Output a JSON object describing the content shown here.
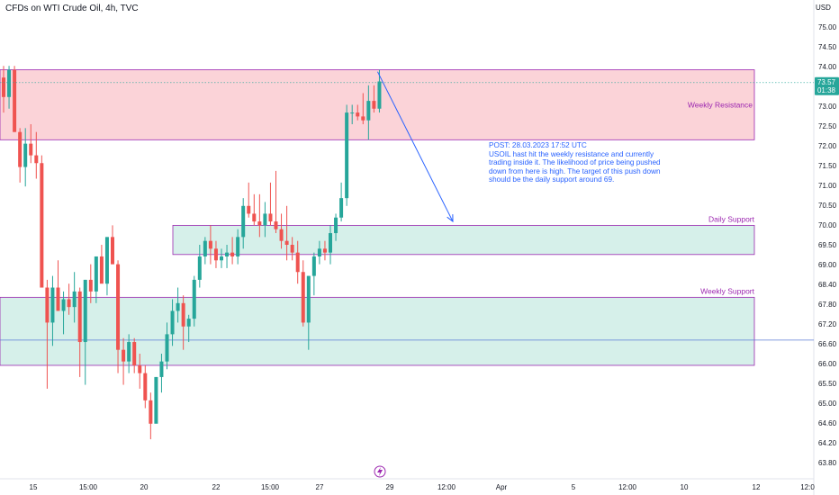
{
  "chart_data": {
    "type": "candlestick",
    "title": "CFDs on WTI Crude Oil, 4h, TVC",
    "y_unit": "USD",
    "y_ticks": [
      "75.00",
      "74.50",
      "74.00",
      "73.50",
      "73.00",
      "72.50",
      "72.00",
      "71.50",
      "71.00",
      "70.50",
      "70.00",
      "69.50",
      "69.00",
      "68.40",
      "67.80",
      "67.20",
      "66.60",
      "66.00",
      "65.50",
      "65.00",
      "64.60",
      "64.20",
      "63.80"
    ],
    "ylim": [
      63.5,
      75.3
    ],
    "x_ticks": [
      "15",
      "15:00",
      "20",
      "22",
      "15:00",
      "27",
      "29",
      "12:00",
      "Apr",
      "5",
      "12:00",
      "10",
      "12",
      "12:0"
    ],
    "last_price": "73.57",
    "countdown": "01:38",
    "colors": {
      "up": "#26a69a",
      "down": "#ef5350",
      "resistance_fill": "#fbd3d8",
      "support_fill": "#d6f0ea",
      "zone_border": "#9c27b0",
      "annotation": "#2962ff"
    },
    "zones": [
      {
        "label": "Weekly Resistance",
        "from": 72.1,
        "to": 73.9,
        "color": "#ef5350"
      },
      {
        "label": "Daily Support",
        "from": 69.15,
        "to": 69.9,
        "color": "#26a69a"
      },
      {
        "label": "Weekly Support",
        "from": 66.3,
        "to": 68.05,
        "color": "#26a69a"
      }
    ],
    "horizontal_line": 66.95,
    "projection": {
      "from": 73.85,
      "to": 70.0
    },
    "annotation_lines": [
      "POST: 28.03.2023 17:52 UTC",
      "USOIL hast hit the weekly resistance and currently",
      "trading inside it. The likelihood of price being pushed",
      "down from here is high. The target of this push down",
      "should be the daily support around 69."
    ],
    "candles": [
      [
        73.7,
        74.0,
        72.8,
        73.2
      ],
      [
        73.2,
        74.0,
        72.9,
        73.9
      ],
      [
        73.9,
        74.0,
        72.3,
        72.3
      ],
      [
        72.3,
        72.4,
        71.0,
        71.4
      ],
      [
        71.4,
        72.4,
        70.9,
        72.0
      ],
      [
        72.0,
        72.5,
        71.5,
        71.7
      ],
      [
        71.7,
        72.3,
        71.1,
        71.5
      ],
      [
        71.5,
        71.7,
        68.4,
        68.3
      ],
      [
        68.3,
        68.5,
        65.7,
        67.4
      ],
      [
        67.4,
        68.6,
        66.8,
        68.3
      ],
      [
        68.3,
        69.0,
        67.8,
        67.7
      ],
      [
        67.7,
        68.2,
        67.1,
        68.0
      ],
      [
        68.0,
        68.4,
        67.6,
        67.8
      ],
      [
        67.8,
        68.7,
        67.4,
        68.2
      ],
      [
        68.2,
        68.3,
        66.0,
        66.9
      ],
      [
        66.9,
        68.5,
        65.8,
        68.5
      ],
      [
        68.5,
        68.9,
        67.9,
        68.2
      ],
      [
        68.2,
        69.1,
        67.9,
        69.1
      ],
      [
        69.1,
        69.4,
        68.5,
        68.4
      ],
      [
        68.4,
        69.6,
        68.1,
        69.6
      ],
      [
        69.6,
        69.9,
        68.9,
        68.9
      ],
      [
        68.9,
        69.0,
        66.1,
        66.7
      ],
      [
        66.7,
        67.0,
        65.8,
        66.4
      ],
      [
        66.4,
        67.1,
        66.1,
        66.9
      ],
      [
        66.9,
        67.0,
        66.1,
        66.3
      ],
      [
        66.3,
        66.6,
        65.7,
        66.1
      ],
      [
        66.1,
        66.3,
        65.2,
        65.4
      ],
      [
        65.4,
        65.6,
        64.4,
        64.8
      ],
      [
        64.8,
        66.0,
        64.9,
        66.0
      ],
      [
        66.0,
        66.6,
        65.6,
        66.4
      ],
      [
        66.4,
        67.4,
        66.2,
        67.1
      ],
      [
        67.1,
        68.0,
        66.8,
        67.7
      ],
      [
        67.7,
        68.3,
        67.4,
        67.9
      ],
      [
        67.9,
        68.1,
        66.7,
        67.3
      ],
      [
        67.3,
        67.6,
        66.9,
        67.5
      ],
      [
        67.5,
        68.6,
        67.3,
        68.5
      ],
      [
        68.5,
        69.4,
        68.3,
        69.1
      ],
      [
        69.1,
        69.6,
        68.9,
        69.5
      ],
      [
        69.5,
        69.9,
        68.9,
        69.3
      ],
      [
        69.3,
        69.5,
        68.8,
        69.0
      ],
      [
        69.0,
        69.3,
        68.8,
        69.1
      ],
      [
        69.1,
        69.4,
        68.8,
        69.2
      ],
      [
        69.2,
        69.6,
        68.9,
        69.1
      ],
      [
        69.1,
        69.8,
        68.9,
        69.6
      ],
      [
        69.6,
        70.6,
        69.3,
        70.4
      ],
      [
        70.4,
        71.0,
        70.1,
        70.2
      ],
      [
        70.2,
        70.7,
        69.9,
        70.0
      ],
      [
        70.0,
        70.7,
        69.6,
        69.9
      ],
      [
        69.9,
        70.5,
        69.6,
        70.2
      ],
      [
        70.2,
        71.0,
        69.9,
        70.0
      ],
      [
        70.0,
        71.3,
        69.7,
        69.8
      ],
      [
        69.8,
        70.2,
        69.3,
        69.5
      ],
      [
        69.5,
        70.4,
        69.0,
        69.4
      ],
      [
        69.4,
        69.6,
        69.0,
        69.2
      ],
      [
        69.2,
        69.5,
        68.4,
        68.7
      ],
      [
        68.7,
        69.0,
        67.3,
        67.4
      ],
      [
        67.4,
        68.6,
        66.7,
        68.6
      ],
      [
        68.6,
        69.2,
        68.1,
        69.1
      ],
      [
        69.1,
        69.5,
        68.9,
        69.3
      ],
      [
        69.3,
        69.5,
        69.0,
        69.2
      ],
      [
        69.2,
        69.9,
        68.9,
        69.7
      ],
      [
        69.7,
        70.2,
        69.5,
        70.1
      ],
      [
        70.1,
        71.0,
        70.0,
        70.6
      ],
      [
        70.6,
        73.0,
        70.4,
        72.8
      ],
      [
        72.8,
        73.0,
        72.5,
        72.8
      ],
      [
        72.8,
        73.0,
        72.6,
        72.7
      ],
      [
        72.7,
        73.3,
        72.5,
        72.6
      ],
      [
        72.6,
        73.5,
        72.1,
        73.1
      ],
      [
        73.1,
        73.5,
        72.8,
        72.9
      ],
      [
        72.9,
        73.9,
        72.8,
        73.6
      ]
    ]
  }
}
